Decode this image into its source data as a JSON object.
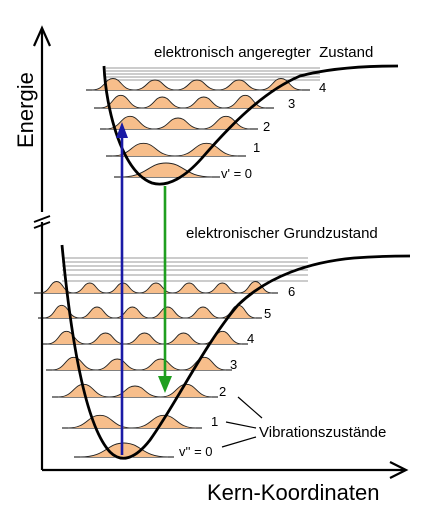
{
  "axes": {
    "y_label": "Energie",
    "x_label": "Kern-Koordinaten"
  },
  "excited_state": {
    "title": "elektronisch angeregter  Zustand",
    "levels": [
      {
        "label": "v' = 0"
      },
      {
        "label": "1"
      },
      {
        "label": "2"
      },
      {
        "label": "3"
      },
      {
        "label": "4"
      }
    ]
  },
  "ground_state": {
    "title": "elektronischer Grundzustand",
    "levels": [
      {
        "label": "v'' = 0"
      },
      {
        "label": "1"
      },
      {
        "label": "2"
      },
      {
        "label": "3"
      },
      {
        "label": "4"
      },
      {
        "label": "5"
      },
      {
        "label": "6"
      }
    ]
  },
  "annotations": {
    "vibration_states": "Vibrationszustände"
  },
  "colors": {
    "absorption_arrow": "#1a1aa6",
    "emission_arrow": "#1f9f1f",
    "wavefunction_fill": "#f7be8b",
    "line": "#000000"
  }
}
